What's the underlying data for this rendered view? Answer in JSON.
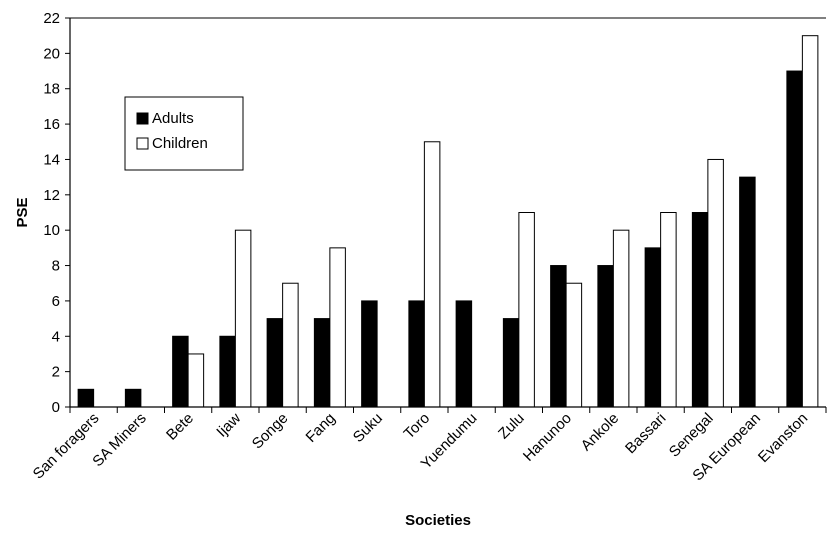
{
  "chart_data": {
    "type": "bar",
    "xlabel": "Societies",
    "ylabel": "PSE",
    "ylim": [
      0,
      22
    ],
    "ytick_step": 2,
    "grid": false,
    "legend_placement": "top-left",
    "categories": [
      "San foragers",
      "SA Miners",
      "Bete",
      "Ijaw",
      "Songe",
      "Fang",
      "Suku",
      "Toro",
      "Yuendumu",
      "Zulu",
      "Hanunoo",
      "Ankole",
      "Bassari",
      "Senegal",
      "SA European",
      "Evanston"
    ],
    "series": [
      {
        "name": "Adults",
        "color": "#000000",
        "values": [
          1,
          1,
          4,
          4,
          5,
          5,
          6,
          6,
          6,
          5,
          8,
          8,
          9,
          11,
          13,
          19
        ]
      },
      {
        "name": "Children",
        "color": "#ffffff",
        "values": [
          null,
          null,
          3,
          10,
          7,
          9,
          null,
          15,
          null,
          11,
          7,
          10,
          11,
          14,
          null,
          21
        ]
      }
    ]
  }
}
